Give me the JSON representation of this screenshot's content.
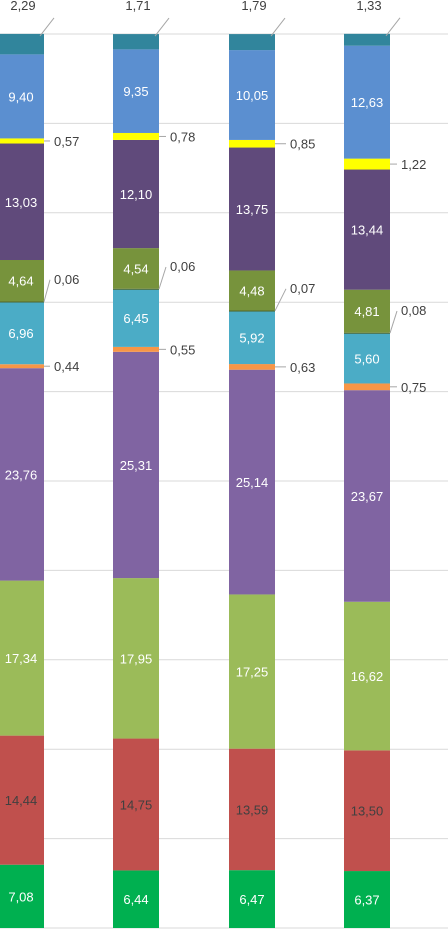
{
  "chart_data": {
    "type": "bar",
    "stacked": true,
    "orientation": "vertical",
    "title": "",
    "xlabel": "",
    "ylabel": "",
    "grid": true,
    "legend": "none",
    "categories": [
      "",
      "",
      "",
      ""
    ],
    "series": [
      {
        "color": "#00b050",
        "values": [
          7.08,
          6.44,
          6.47,
          6.37
        ],
        "labels": [
          "7,08",
          "6,44",
          "6,47",
          "6,37"
        ]
      },
      {
        "color": "#c0504d",
        "values": [
          14.44,
          14.75,
          13.59,
          13.5
        ],
        "labels": [
          "14,44",
          "14,75",
          "13,59",
          "13,50"
        ]
      },
      {
        "color": "#9bbb59",
        "values": [
          17.34,
          17.95,
          17.25,
          16.62
        ],
        "labels": [
          "17,34",
          "17,95",
          "17,25",
          "16,62"
        ]
      },
      {
        "color": "#8064a2",
        "values": [
          23.76,
          25.31,
          25.14,
          23.67
        ],
        "labels": [
          "23,76",
          "25,31",
          "25,14",
          "23,67"
        ]
      },
      {
        "color": "#f79646",
        "values": [
          0.44,
          0.55,
          0.63,
          0.75
        ],
        "labels": [
          "0,44",
          "0,55",
          "0,63",
          "0,75"
        ]
      },
      {
        "color": "#4bacc6",
        "values": [
          6.96,
          6.45,
          5.92,
          5.6
        ],
        "labels": [
          "6,96",
          "6,45",
          "5,92",
          "5,60"
        ]
      },
      {
        "color": "#4f6228",
        "values": [
          0.06,
          0.06,
          0.07,
          0.08
        ],
        "labels": [
          "0,06",
          "0,06",
          "0,07",
          "0,08"
        ]
      },
      {
        "color": "#77933c",
        "values": [
          4.64,
          4.54,
          4.48,
          4.81
        ],
        "labels": [
          "4,64",
          "4,54",
          "4,48",
          "4,81"
        ]
      },
      {
        "color": "#604a7b",
        "values": [
          13.03,
          12.1,
          13.75,
          13.44
        ],
        "labels": [
          "13,03",
          "12,10",
          "13,75",
          "13,44"
        ]
      },
      {
        "color": "#ffff00",
        "values": [
          0.57,
          0.78,
          0.85,
          1.22
        ],
        "labels": [
          "0,57",
          "0,78",
          "0,85",
          "1,22"
        ]
      },
      {
        "color": "#5b8fd0",
        "values": [
          9.4,
          9.35,
          10.05,
          12.63
        ],
        "labels": [
          "9,40",
          "9,35",
          "10,05",
          "12,63"
        ]
      },
      {
        "color": "#31859c",
        "values": [
          2.29,
          1.71,
          1.79,
          1.33
        ],
        "labels": [
          "2,29",
          "1,71",
          "1,79",
          "1,33"
        ]
      }
    ]
  }
}
